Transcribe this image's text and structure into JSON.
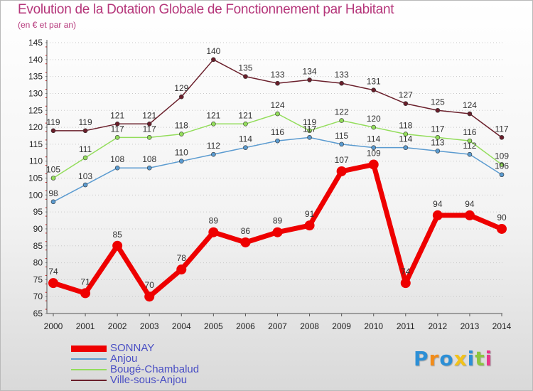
{
  "chart_data": {
    "type": "line",
    "title": "Evolution de la Dotation Globale de Fonctionnement par Habitant",
    "subtitle": "(en € et par an)",
    "x": [
      "2000",
      "2001",
      "2002",
      "2003",
      "2004",
      "2005",
      "2006",
      "2007",
      "2008",
      "2009",
      "2010",
      "2011",
      "2012",
      "2013",
      "2014"
    ],
    "ylim": [
      65,
      145
    ],
    "yticks": [
      65,
      70,
      75,
      80,
      85,
      90,
      95,
      100,
      105,
      110,
      115,
      120,
      125,
      130,
      135,
      140,
      145
    ],
    "series": [
      {
        "name": "SONNAY",
        "color": "#ee0000",
        "width": 7,
        "marker": 7,
        "values": [
          74,
          71,
          85,
          70,
          78,
          89,
          86,
          89,
          91,
          107,
          109,
          74,
          94,
          94,
          90
        ],
        "labels": [
          "74",
          "71",
          "85",
          "70",
          "78",
          "89",
          "86",
          "89",
          "91",
          "107",
          "109",
          "74",
          "94",
          "94",
          "90"
        ]
      },
      {
        "name": "Anjou",
        "color": "#5b9bd0",
        "width": 1.5,
        "marker": 3,
        "values": [
          98,
          103,
          108,
          108,
          110,
          112,
          114,
          116,
          117,
          115,
          114,
          114,
          113,
          112,
          106
        ],
        "labels": [
          "98",
          "103",
          "108",
          "108",
          "110",
          "112",
          "114",
          "116",
          "117",
          "115",
          "114",
          "114",
          "113",
          "112",
          "106"
        ]
      },
      {
        "name": "Bougé-Chambalud",
        "color": "#93dd5b",
        "width": 1.5,
        "marker": 3,
        "values": [
          105,
          111,
          117,
          117,
          118,
          121,
          121,
          124,
          119,
          122,
          120,
          118,
          117,
          116,
          109
        ],
        "labels": [
          "105",
          "111",
          "117",
          "117",
          "118",
          "121",
          "121",
          "124",
          "119",
          "122",
          "120",
          "118",
          "117",
          "116",
          "109"
        ]
      },
      {
        "name": "Ville-sous-Anjou",
        "color": "#6a1f2b",
        "width": 1.5,
        "marker": 3,
        "values": [
          119,
          119,
          121,
          121,
          129,
          140,
          135,
          133,
          134,
          133,
          131,
          127,
          125,
          124,
          117
        ],
        "labels": [
          "119",
          "119",
          "121",
          "121",
          "129",
          "140",
          "135",
          "133",
          "134",
          "133",
          "131",
          "127",
          "125",
          "124",
          "117"
        ]
      }
    ],
    "grid": "horizontal-dotted",
    "legend": "bottom-left"
  },
  "logo": {
    "text": "Proxiti",
    "letters": [
      "P",
      "r",
      "o",
      "x",
      "i",
      "t",
      "i"
    ],
    "colors": [
      "#2c8fd6",
      "#f28c1a",
      "#2c8fd6",
      "#f2c21a",
      "#2c8fd6",
      "#8cc63f",
      "#e8378a"
    ]
  }
}
